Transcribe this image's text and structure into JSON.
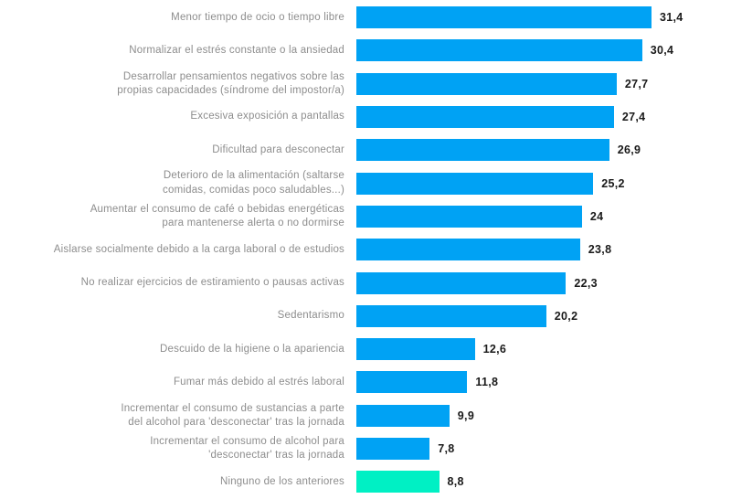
{
  "chart_data": {
    "type": "bar",
    "orientation": "horizontal",
    "title": "",
    "xlabel": "",
    "ylabel": "",
    "xlim": [
      0,
      31.4
    ],
    "grid": false,
    "legend": false,
    "categories": [
      "Menor tiempo de ocio o tiempo libre",
      "Normalizar el estrés constante o la ansiedad",
      "Desarrollar pensamientos negativos sobre las\npropias capacidades (síndrome del impostor/a)",
      "Excesiva exposición a pantallas",
      "Dificultad para desconectar",
      "Deterioro de la alimentación (saltarse\ncomidas, comidas poco saludables...)",
      "Aumentar el consumo de café o bebidas energéticas\npara mantenerse alerta o no dormirse",
      "Aislarse socialmente debido a la carga laboral o de estudios",
      "No realizar ejercicios de estiramiento o pausas activas",
      "Sedentarismo",
      "Descuido de la higiene o la apariencia",
      "Fumar más debido al estrés laboral",
      "Incrementar el consumo de sustancias a parte\ndel alcohol para 'desconectar' tras la jornada",
      "Incrementar el consumo de alcohol para\n'desconectar' tras la jornada",
      "Ninguno de los anteriores"
    ],
    "values": [
      31.4,
      30.4,
      27.7,
      27.4,
      26.9,
      25.2,
      24,
      23.8,
      22.3,
      20.2,
      12.6,
      11.8,
      9.9,
      7.8,
      8.8
    ],
    "value_labels": [
      "31,4",
      "30,4",
      "27,7",
      "27,4",
      "26,9",
      "25,2",
      "24",
      "23,8",
      "22,3",
      "20,2",
      "12,6",
      "11,8",
      "9,9",
      "7,8",
      "8,8"
    ],
    "colors": {
      "bar_default": "#00a2f4",
      "bar_highlight": "#00f0c4",
      "label_text": "#8d8d8d",
      "value_text": "#1a1a1a"
    },
    "highlight_index": 14
  }
}
